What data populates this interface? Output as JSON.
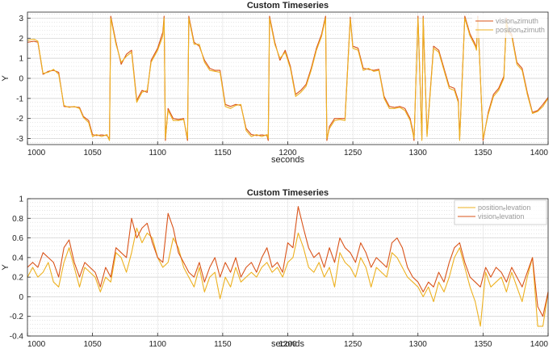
{
  "chart_data": [
    {
      "type": "line",
      "title": "Custom Timeseries",
      "xlabel": "seconds",
      "ylabel": "Y",
      "xlim": [
        1000,
        1400
      ],
      "ylim": [
        -3.3,
        3.3
      ],
      "xticks": [
        1000,
        1050,
        1100,
        1150,
        1200,
        1250,
        1300,
        1350,
        1400
      ],
      "yticks": [
        3,
        2,
        1,
        0,
        -1,
        -2,
        -3
      ],
      "grid": true,
      "legend": "top-right",
      "series": [
        {
          "name": "vision_azimuth",
          "legend_label": "visionₐzimuth",
          "color": "#d95319",
          "x": [
            1000,
            1005,
            1008,
            1012,
            1016,
            1020,
            1024,
            1028,
            1032,
            1036,
            1040,
            1043,
            1047,
            1050,
            1053,
            1057,
            1061,
            1063,
            1064,
            1068,
            1072,
            1076,
            1080,
            1084,
            1088,
            1092,
            1095,
            1100,
            1104,
            1105,
            1106,
            1108,
            1112,
            1116,
            1120,
            1123,
            1124,
            1128,
            1132,
            1136,
            1140,
            1144,
            1148,
            1152,
            1156,
            1160,
            1164,
            1168,
            1172,
            1176,
            1180,
            1184,
            1185,
            1186,
            1190,
            1194,
            1198,
            1202,
            1206,
            1210,
            1214,
            1218,
            1222,
            1226,
            1229,
            1230,
            1232,
            1236,
            1240,
            1244,
            1248,
            1250,
            1254,
            1258,
            1262,
            1266,
            1270,
            1274,
            1278,
            1282,
            1286,
            1290,
            1294,
            1296,
            1297,
            1300,
            1303,
            1304,
            1307,
            1312,
            1316,
            1320,
            1324,
            1328,
            1331,
            1332,
            1336,
            1340,
            1344,
            1345,
            1346,
            1350,
            1354,
            1358,
            1362,
            1366,
            1368,
            1369,
            1372,
            1376,
            1380,
            1384,
            1388,
            1392,
            1396,
            1400
          ],
          "y": [
            1.8,
            1.85,
            1.8,
            0.2,
            0.35,
            0.4,
            0.3,
            -1.4,
            -1.42,
            -1.42,
            -1.45,
            -1.9,
            -2.1,
            -2.8,
            -2.85,
            -2.82,
            -2.85,
            -3.0,
            3.1,
            1.8,
            0.7,
            1.2,
            1.4,
            -1.1,
            -0.6,
            -0.7,
            0.9,
            1.5,
            2.3,
            3.1,
            -3.1,
            -1.5,
            -2.0,
            -2.05,
            -2.0,
            -3.1,
            3.1,
            1.8,
            1.6,
            0.9,
            0.5,
            0.4,
            0.4,
            -1.3,
            -1.4,
            -1.3,
            -1.35,
            -2.5,
            -2.8,
            -2.85,
            -2.82,
            -2.85,
            -3.1,
            3.1,
            1.8,
            0.9,
            1.4,
            0.6,
            -0.8,
            -0.6,
            -0.3,
            0.5,
            1.5,
            2.2,
            3.1,
            -3.1,
            -2.4,
            -2.0,
            -2.0,
            -2.0,
            3.05,
            1.6,
            1.5,
            0.5,
            0.45,
            0.4,
            0.45,
            -0.9,
            -1.4,
            -1.45,
            -1.4,
            -1.5,
            -2.0,
            -2.6,
            -3.1,
            3.1,
            -3.0,
            3.1,
            -2.8,
            1.6,
            1.4,
            0.5,
            -0.4,
            -0.5,
            -1.1,
            -3.0,
            3.1,
            2.2,
            1.7,
            1.5,
            3.1,
            -3.1,
            -1.7,
            -0.8,
            -0.5,
            0.1,
            3.0,
            2.4,
            2.2,
            0.8,
            0.5,
            -0.7,
            -1.7,
            -1.6,
            -1.3,
            -0.95
          ]
        },
        {
          "name": "position_azimuth",
          "legend_label": "positionₐzimuth",
          "color": "#edb120",
          "x": [
            1000,
            1005,
            1008,
            1012,
            1016,
            1020,
            1024,
            1028,
            1032,
            1036,
            1040,
            1043,
            1047,
            1050,
            1053,
            1057,
            1061,
            1063,
            1064,
            1068,
            1072,
            1076,
            1080,
            1084,
            1088,
            1092,
            1095,
            1100,
            1104,
            1105,
            1106,
            1108,
            1112,
            1116,
            1120,
            1123,
            1124,
            1128,
            1132,
            1136,
            1140,
            1144,
            1148,
            1152,
            1156,
            1160,
            1164,
            1168,
            1172,
            1176,
            1180,
            1184,
            1185,
            1186,
            1190,
            1194,
            1198,
            1202,
            1206,
            1210,
            1214,
            1218,
            1222,
            1226,
            1229,
            1230,
            1232,
            1236,
            1240,
            1244,
            1248,
            1250,
            1254,
            1258,
            1262,
            1266,
            1270,
            1274,
            1278,
            1282,
            1286,
            1290,
            1294,
            1296,
            1297,
            1300,
            1303,
            1304,
            1307,
            1312,
            1316,
            1320,
            1324,
            1328,
            1331,
            1332,
            1336,
            1340,
            1344,
            1345,
            1346,
            1350,
            1354,
            1358,
            1362,
            1366,
            1368,
            1369,
            1372,
            1376,
            1380,
            1384,
            1388,
            1392,
            1396,
            1400
          ],
          "y": [
            1.9,
            1.95,
            1.85,
            0.25,
            0.3,
            0.45,
            0.2,
            -1.35,
            -1.45,
            -1.4,
            -1.5,
            -1.95,
            -2.2,
            -2.9,
            -2.8,
            -2.9,
            -2.8,
            -3.1,
            3.0,
            1.7,
            0.8,
            1.1,
            1.3,
            -1.2,
            -0.7,
            -0.6,
            0.8,
            1.4,
            2.1,
            3.0,
            -3.0,
            -1.6,
            -2.1,
            -2.1,
            -2.05,
            -3.0,
            3.0,
            1.7,
            1.7,
            0.8,
            0.4,
            0.35,
            0.3,
            -1.4,
            -1.5,
            -1.35,
            -1.3,
            -2.6,
            -2.9,
            -2.8,
            -2.9,
            -2.8,
            -3.0,
            3.0,
            1.7,
            1.0,
            1.3,
            0.5,
            -0.9,
            -0.7,
            -0.4,
            0.4,
            1.4,
            2.1,
            3.0,
            -3.0,
            -2.5,
            -2.1,
            -2.05,
            -2.1,
            2.95,
            1.5,
            1.4,
            0.4,
            0.5,
            0.35,
            0.4,
            -1.0,
            -1.5,
            -1.5,
            -1.45,
            -1.6,
            -2.1,
            -2.7,
            -3.0,
            3.0,
            -3.1,
            3.0,
            -2.9,
            1.5,
            1.3,
            0.4,
            -0.5,
            -0.6,
            -1.2,
            -3.1,
            3.0,
            2.1,
            1.6,
            1.4,
            3.0,
            -3.0,
            -1.8,
            -0.9,
            -0.6,
            0.0,
            2.9,
            2.3,
            2.1,
            0.7,
            0.4,
            -0.8,
            -1.75,
            -1.65,
            -1.4,
            -1.0
          ]
        }
      ]
    },
    {
      "type": "line",
      "title": "Custom Timeseries",
      "xlabel": "seconds",
      "ylabel": "Y",
      "xlim": [
        1000,
        1400
      ],
      "ylim": [
        -0.4,
        1.0
      ],
      "xticks": [
        1000,
        1050,
        1100,
        1150,
        1200,
        1250,
        1300,
        1350,
        1400
      ],
      "yticks": [
        1,
        0.8,
        0.6,
        0.4,
        0.2,
        0,
        -0.2,
        -0.4
      ],
      "grid": true,
      "legend": "top-right",
      "series": [
        {
          "name": "position_elevation",
          "legend_label": "positionₑlevation",
          "color": "#edb120",
          "x": [
            1000,
            1004,
            1008,
            1012,
            1016,
            1020,
            1024,
            1028,
            1032,
            1036,
            1040,
            1044,
            1048,
            1052,
            1056,
            1060,
            1064,
            1068,
            1072,
            1076,
            1080,
            1084,
            1088,
            1092,
            1096,
            1100,
            1104,
            1108,
            1112,
            1116,
            1120,
            1124,
            1128,
            1132,
            1136,
            1140,
            1144,
            1148,
            1152,
            1156,
            1160,
            1164,
            1168,
            1172,
            1176,
            1180,
            1184,
            1188,
            1192,
            1196,
            1200,
            1204,
            1208,
            1212,
            1216,
            1220,
            1224,
            1228,
            1232,
            1236,
            1240,
            1244,
            1248,
            1252,
            1256,
            1260,
            1264,
            1268,
            1272,
            1276,
            1280,
            1284,
            1288,
            1292,
            1296,
            1300,
            1304,
            1308,
            1312,
            1316,
            1320,
            1324,
            1328,
            1332,
            1336,
            1340,
            1344,
            1348,
            1352,
            1356,
            1360,
            1364,
            1368,
            1372,
            1376,
            1380,
            1384,
            1388,
            1392,
            1396,
            1400
          ],
          "y": [
            0.2,
            0.3,
            0.2,
            0.25,
            0.35,
            0.15,
            0.1,
            0.35,
            0.5,
            0.3,
            0.1,
            0.3,
            0.25,
            0.2,
            0.05,
            0.2,
            0.15,
            0.45,
            0.4,
            0.25,
            0.45,
            0.7,
            0.55,
            0.65,
            0.6,
            0.4,
            0.3,
            0.35,
            0.6,
            0.5,
            0.3,
            0.2,
            0.1,
            0.3,
            0.05,
            0.2,
            0.25,
            -0.02,
            0.2,
            0.1,
            0.3,
            0.15,
            0.2,
            0.25,
            0.2,
            0.3,
            0.35,
            0.25,
            0.3,
            0.2,
            0.35,
            0.4,
            0.65,
            0.5,
            0.3,
            0.25,
            0.35,
            0.2,
            0.3,
            0.1,
            0.45,
            0.35,
            0.3,
            0.2,
            0.4,
            0.3,
            0.1,
            0.3,
            0.25,
            0.2,
            0.45,
            0.4,
            0.3,
            0.2,
            0.15,
            0.1,
            0.0,
            0.1,
            -0.05,
            0.15,
            0.05,
            0.2,
            0.4,
            0.5,
            0.3,
            0.1,
            -0.05,
            -0.3,
            0.25,
            0.1,
            0.15,
            0.2,
            0.05,
            0.25,
            0.1,
            -0.05,
            0.2,
            0.4,
            -0.3,
            -0.3,
            0.05
          ]
        },
        {
          "name": "vision_elevation",
          "legend_label": "visionₑlevation",
          "color": "#d95319",
          "x": [
            1000,
            1004,
            1008,
            1012,
            1016,
            1020,
            1024,
            1028,
            1032,
            1036,
            1040,
            1044,
            1048,
            1052,
            1056,
            1060,
            1064,
            1068,
            1072,
            1076,
            1080,
            1084,
            1088,
            1092,
            1096,
            1100,
            1104,
            1108,
            1112,
            1116,
            1120,
            1124,
            1128,
            1132,
            1136,
            1140,
            1144,
            1148,
            1152,
            1156,
            1160,
            1164,
            1168,
            1172,
            1176,
            1180,
            1184,
            1188,
            1192,
            1196,
            1200,
            1204,
            1208,
            1212,
            1216,
            1220,
            1224,
            1228,
            1232,
            1236,
            1240,
            1244,
            1248,
            1252,
            1256,
            1260,
            1264,
            1268,
            1272,
            1276,
            1280,
            1284,
            1288,
            1292,
            1296,
            1300,
            1304,
            1308,
            1312,
            1316,
            1320,
            1324,
            1328,
            1332,
            1336,
            1340,
            1344,
            1348,
            1352,
            1356,
            1360,
            1364,
            1368,
            1372,
            1376,
            1380,
            1384,
            1388,
            1392,
            1396,
            1400
          ],
          "y": [
            0.3,
            0.35,
            0.3,
            0.45,
            0.4,
            0.35,
            0.2,
            0.5,
            0.58,
            0.35,
            0.2,
            0.35,
            0.3,
            0.25,
            0.1,
            0.3,
            0.2,
            0.5,
            0.45,
            0.4,
            0.8,
            0.6,
            0.7,
            0.75,
            0.55,
            0.4,
            0.35,
            0.85,
            0.7,
            0.45,
            0.35,
            0.25,
            0.2,
            0.35,
            0.15,
            0.3,
            0.4,
            0.2,
            0.35,
            0.25,
            0.4,
            0.2,
            0.3,
            0.35,
            0.25,
            0.4,
            0.5,
            0.3,
            0.35,
            0.25,
            0.55,
            0.5,
            0.92,
            0.7,
            0.5,
            0.4,
            0.45,
            0.3,
            0.5,
            0.35,
            0.6,
            0.5,
            0.45,
            0.35,
            0.55,
            0.45,
            0.3,
            0.4,
            0.35,
            0.3,
            0.55,
            0.6,
            0.5,
            0.3,
            0.2,
            0.15,
            0.05,
            0.15,
            0.1,
            0.25,
            0.15,
            0.35,
            0.5,
            0.55,
            0.35,
            0.2,
            0.15,
            0.1,
            0.3,
            0.2,
            0.3,
            0.25,
            0.15,
            0.3,
            0.2,
            0.1,
            0.25,
            0.4,
            -0.1,
            -0.2,
            0.05
          ]
        }
      ]
    }
  ]
}
